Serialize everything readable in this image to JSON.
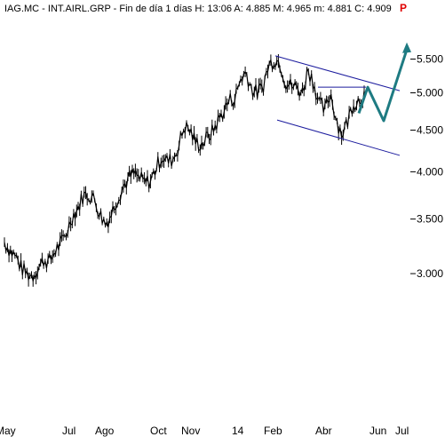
{
  "chart_data": {
    "type": "line",
    "title": "IAG.MC - INT.AIRL.GRP - Fin de día 1 días  H: 13:06  A: 4.885  M: 4.965  m: 4.881  C: 4.909",
    "header_flag": "P",
    "ylim": [
      2.85,
      5.75
    ],
    "y_scale": "log",
    "y_ticks": [
      "3.000",
      "3.500",
      "4.000",
      "4.500",
      "5.000",
      "5.500"
    ],
    "x_ticks": [
      "May",
      "Jul",
      "Ago",
      "Oct",
      "Nov",
      "14",
      "Feb",
      "Abr",
      "Jun",
      "Jul"
    ],
    "xlabel": "",
    "ylabel": "",
    "grid": false,
    "legend": "none",
    "colors": {
      "price": "#000000",
      "channel": "#1c1c9e",
      "projection": "#1e7b82",
      "flag": "#e00000"
    },
    "series": [
      {
        "values": [
          3.28,
          3.2,
          3.15,
          3.05,
          3.0,
          2.98,
          3.05,
          3.12,
          3.1,
          3.2,
          3.26,
          3.36,
          3.52,
          3.6,
          3.74,
          3.75,
          3.7,
          3.55,
          3.45,
          3.55,
          3.7,
          3.82,
          3.92,
          3.98,
          3.93,
          3.88,
          3.9,
          4.05,
          4.18,
          4.12,
          4.15,
          4.3,
          4.55,
          4.5,
          4.35,
          4.32,
          4.4,
          4.48,
          4.62,
          4.75,
          4.9,
          4.92,
          5.2,
          5.3,
          5.05,
          5.0,
          5.1,
          5.4,
          5.5,
          5.45,
          5.15,
          5.1,
          5.08,
          5.0,
          5.35,
          5.15,
          4.85,
          4.75,
          5.0,
          4.65,
          4.45,
          4.6,
          4.85,
          4.9,
          4.98
        ]
      }
    ],
    "annotations": {
      "channel_upper": [
        5.55,
        5.03
      ],
      "channel_lower": [
        4.63,
        4.19
      ],
      "resistance_level": 5.08,
      "projection": [
        4.72,
        5.08,
        4.62,
        5.65
      ]
    }
  }
}
